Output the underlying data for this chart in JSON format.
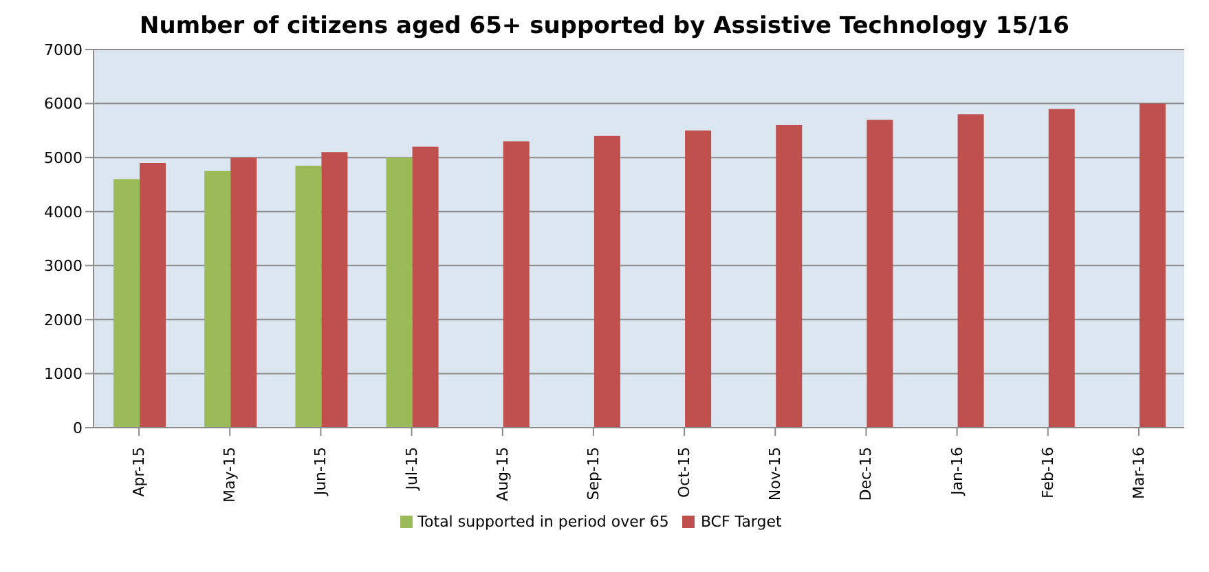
{
  "chart_data": {
    "type": "bar",
    "title": "Number of citizens aged 65+ supported  by Assistive Technology 15/16",
    "categories": [
      "Apr-15",
      "May-15",
      "Jun-15",
      "Jul-15",
      "Aug-15",
      "Sep-15",
      "Oct-15",
      "Nov-15",
      "Dec-15",
      "Jan-16",
      "Feb-16",
      "Mar-16"
    ],
    "series": [
      {
        "name": "Total supported in period over 65",
        "color": "#9bbb59",
        "values": [
          4600,
          4750,
          4850,
          5000,
          null,
          null,
          null,
          null,
          null,
          null,
          null,
          null
        ]
      },
      {
        "name": "BCF Target",
        "color": "#c0504d",
        "values": [
          4900,
          5000,
          5100,
          5200,
          5300,
          5400,
          5500,
          5600,
          5700,
          5800,
          5900,
          6000
        ]
      }
    ],
    "ylim": [
      0,
      7000
    ],
    "yticks": [
      0,
      1000,
      2000,
      3000,
      4000,
      5000,
      6000,
      7000
    ],
    "grid": "y",
    "legend": "bottom"
  }
}
